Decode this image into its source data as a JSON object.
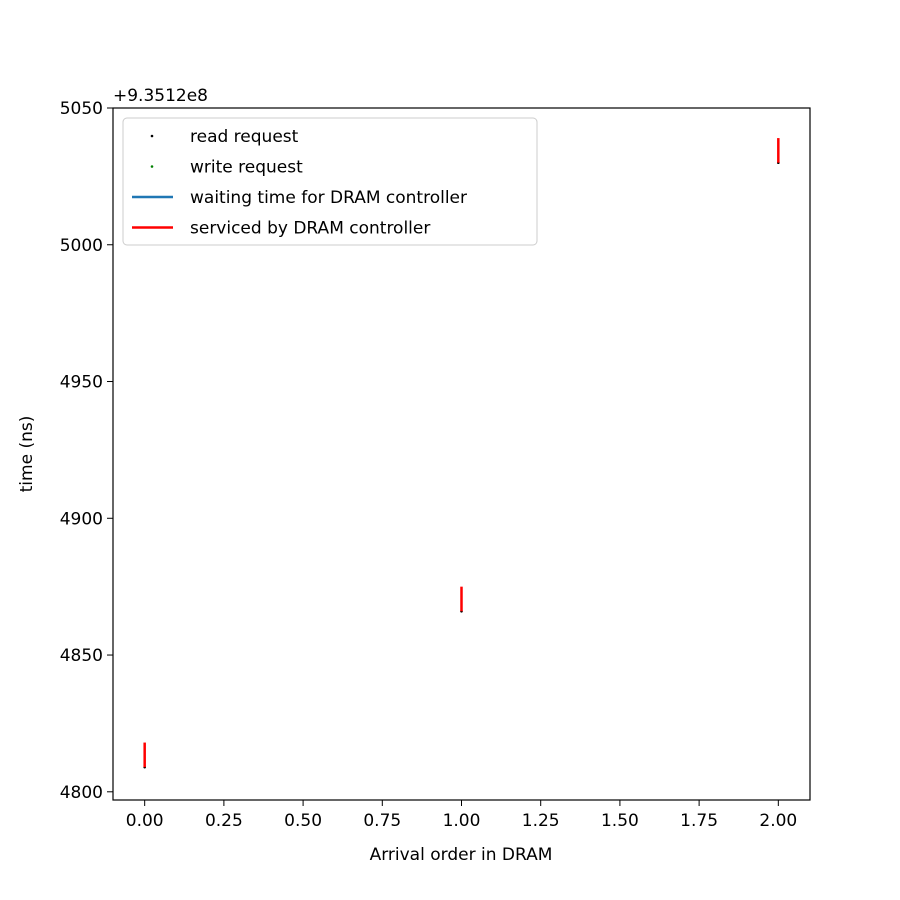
{
  "chart_data": {
    "type": "scatter",
    "title": "",
    "xlabel": "Arrival order in DRAM",
    "ylabel": "time (ns)",
    "y_offset_label": "+9.3512e8",
    "xlim": [
      -0.1,
      2.1
    ],
    "ylim": [
      4797,
      5050
    ],
    "x_ticks": [
      0,
      0.25,
      0.5,
      0.75,
      1.0,
      1.25,
      1.5,
      1.75,
      2.0
    ],
    "x_tick_labels": [
      "0.00",
      "0.25",
      "0.50",
      "0.75",
      "1.00",
      "1.25",
      "1.50",
      "1.75",
      "2.00"
    ],
    "y_ticks": [
      4800,
      4850,
      4900,
      4950,
      5000,
      5050
    ],
    "y_tick_labels": [
      "4800",
      "4850",
      "4900",
      "4950",
      "5000",
      "5050"
    ],
    "grid": false,
    "legend_position": "top-left",
    "legend": [
      {
        "label": "read request",
        "marker": "point",
        "color": "#000000"
      },
      {
        "label": "write request",
        "marker": "point",
        "color": "#008000"
      },
      {
        "label": "waiting time for DRAM controller",
        "marker": "line",
        "color": "#1f77b4"
      },
      {
        "label": "serviced by DRAM controller",
        "marker": "line",
        "color": "#ff0000"
      }
    ],
    "series": [
      {
        "name": "read request",
        "color": "#000000",
        "points": [
          {
            "x": 0,
            "y": 4809
          },
          {
            "x": 1,
            "y": 4866
          },
          {
            "x": 2,
            "y": 5030
          }
        ]
      },
      {
        "name": "write request",
        "color": "#008000",
        "points": []
      },
      {
        "name": "waiting time for DRAM controller",
        "color": "#1f77b4",
        "segments": [
          {
            "x": 0,
            "y_start": 4809,
            "y_end": 4809
          },
          {
            "x": 1,
            "y_start": 4866,
            "y_end": 4866
          },
          {
            "x": 2,
            "y_start": 5030,
            "y_end": 5030
          }
        ]
      },
      {
        "name": "serviced by DRAM controller",
        "color": "#ff0000",
        "segments": [
          {
            "x": 0,
            "y_start": 4809,
            "y_end": 4818
          },
          {
            "x": 1,
            "y_start": 4866,
            "y_end": 4875
          },
          {
            "x": 2,
            "y_start": 5030,
            "y_end": 5039
          }
        ]
      }
    ]
  }
}
